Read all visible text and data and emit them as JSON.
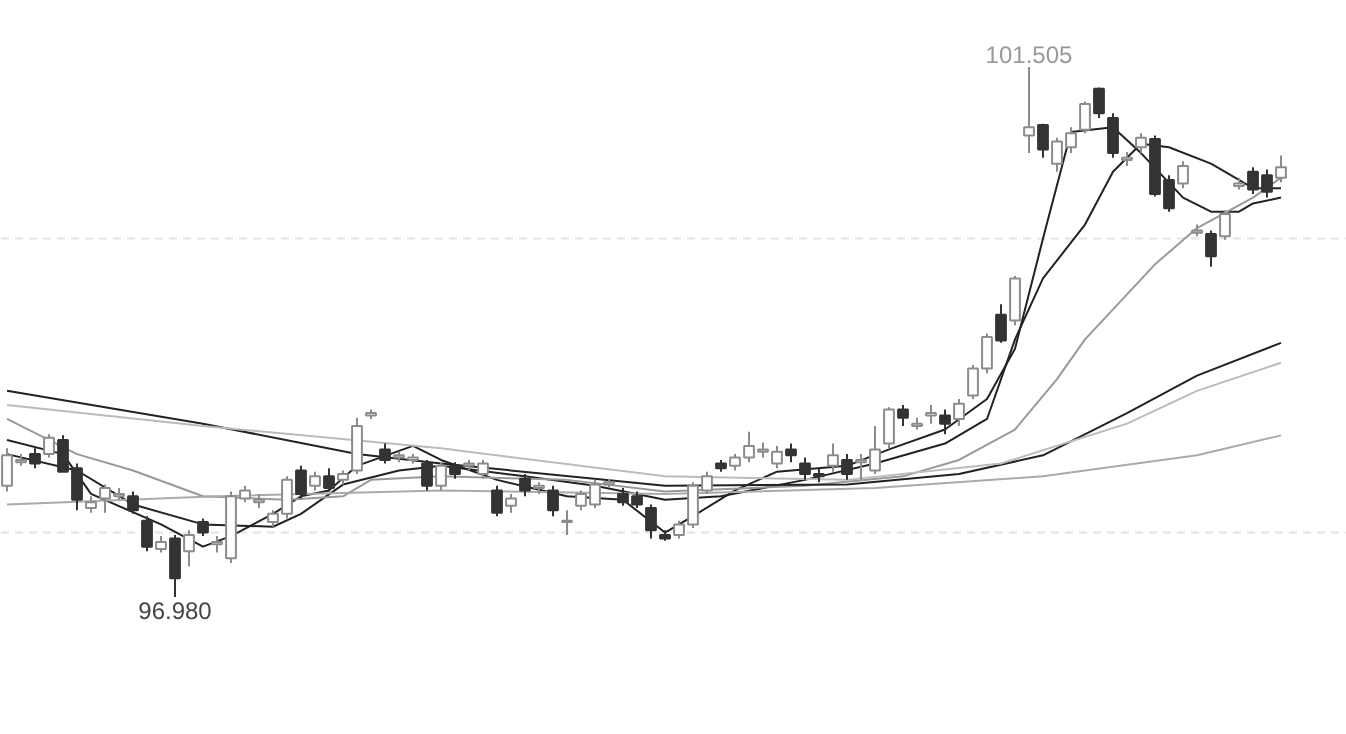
{
  "chart_data": {
    "type": "candlestick",
    "categories": [
      null,
      null,
      null,
      null,
      null,
      null,
      null,
      null,
      null,
      null,
      null,
      null,
      null,
      null,
      null,
      null,
      null,
      null,
      null,
      null,
      null,
      null,
      null,
      null,
      null,
      null,
      null,
      null,
      null,
      null,
      null,
      null,
      null,
      null,
      null,
      null,
      null,
      null,
      null,
      null,
      null,
      null,
      null,
      null,
      null,
      null,
      null,
      null,
      null,
      null,
      null,
      null,
      null,
      null,
      null,
      null,
      null,
      null,
      null,
      null,
      null,
      null,
      null,
      null,
      null,
      null,
      null,
      null,
      null,
      null,
      null,
      null,
      null,
      null,
      null,
      null,
      null,
      null,
      null,
      null,
      null,
      null,
      null,
      null,
      null,
      null,
      null,
      null,
      null,
      null,
      null,
      null
    ],
    "ohlc": [
      [
        97.93,
        98.25,
        97.88,
        98.19
      ],
      [
        98.13,
        98.2,
        98.1,
        98.15
      ],
      [
        98.2,
        98.25,
        98.08,
        98.12
      ],
      [
        98.2,
        98.37,
        98.17,
        98.34
      ],
      [
        98.32,
        98.36,
        98.05,
        98.05
      ],
      [
        98.08,
        98.12,
        97.72,
        97.81
      ],
      [
        97.74,
        97.84,
        97.7,
        97.79
      ],
      [
        97.82,
        97.94,
        97.7,
        97.91
      ],
      [
        97.84,
        97.91,
        97.81,
        97.86
      ],
      [
        97.84,
        97.88,
        97.69,
        97.72
      ],
      [
        97.63,
        97.67,
        97.37,
        97.41
      ],
      [
        97.39,
        97.5,
        97.36,
        97.45
      ],
      [
        97.48,
        97.51,
        96.98,
        97.14
      ],
      [
        97.37,
        97.55,
        97.24,
        97.51
      ],
      [
        97.62,
        97.65,
        97.5,
        97.53
      ],
      [
        97.43,
        97.5,
        97.36,
        97.45
      ],
      [
        97.31,
        97.88,
        97.27,
        97.84
      ],
      [
        97.82,
        97.93,
        97.79,
        97.89
      ],
      [
        97.79,
        97.86,
        97.74,
        97.81
      ],
      [
        97.62,
        97.72,
        97.58,
        97.69
      ],
      [
        97.69,
        98.01,
        97.65,
        97.98
      ],
      [
        98.06,
        98.1,
        97.82,
        97.86
      ],
      [
        97.93,
        98.05,
        97.89,
        98.01
      ],
      [
        98.01,
        98.08,
        97.88,
        97.91
      ],
      [
        97.98,
        98.06,
        97.94,
        98.03
      ],
      [
        98.06,
        98.51,
        98.03,
        98.44
      ],
      [
        98.53,
        98.58,
        98.5,
        98.55
      ],
      [
        98.24,
        98.29,
        98.12,
        98.15
      ],
      [
        98.17,
        98.22,
        98.13,
        98.19
      ],
      [
        98.15,
        98.2,
        98.12,
        98.17
      ],
      [
        98.12,
        98.15,
        97.89,
        97.93
      ],
      [
        97.93,
        98.13,
        97.89,
        98.1
      ],
      [
        98.1,
        98.13,
        97.99,
        98.03
      ],
      [
        98.1,
        98.15,
        98.06,
        98.12
      ],
      [
        98.03,
        98.15,
        97.99,
        98.12
      ],
      [
        97.89,
        97.93,
        97.67,
        97.7
      ],
      [
        97.76,
        97.86,
        97.7,
        97.82
      ],
      [
        97.99,
        98.03,
        97.84,
        97.89
      ],
      [
        97.91,
        97.96,
        97.86,
        97.93
      ],
      [
        97.89,
        97.93,
        97.67,
        97.72
      ],
      [
        97.62,
        97.72,
        97.51,
        97.63
      ],
      [
        97.76,
        97.89,
        97.72,
        97.86
      ],
      [
        97.77,
        97.98,
        97.74,
        97.94
      ],
      [
        97.94,
        97.99,
        97.91,
        97.96
      ],
      [
        97.86,
        97.91,
        97.76,
        97.79
      ],
      [
        97.84,
        97.88,
        97.74,
        97.77
      ],
      [
        97.74,
        97.77,
        97.48,
        97.55
      ],
      [
        97.51,
        97.55,
        97.46,
        97.48
      ],
      [
        97.51,
        97.63,
        97.48,
        97.6
      ],
      [
        97.6,
        97.96,
        97.57,
        97.93
      ],
      [
        97.89,
        98.05,
        97.86,
        98.01
      ],
      [
        98.12,
        98.15,
        98.05,
        98.08
      ],
      [
        98.1,
        98.2,
        98.06,
        98.17
      ],
      [
        98.17,
        98.39,
        98.13,
        98.27
      ],
      [
        98.22,
        98.3,
        98.17,
        98.24
      ],
      [
        98.12,
        98.27,
        98.08,
        98.22
      ],
      [
        98.24,
        98.29,
        98.13,
        98.19
      ],
      [
        98.12,
        98.17,
        97.98,
        98.03
      ],
      [
        98.03,
        98.08,
        97.96,
        98.01
      ],
      [
        98.1,
        98.29,
        98.05,
        98.19
      ],
      [
        98.15,
        98.2,
        97.98,
        98.03
      ],
      [
        98.13,
        98.2,
        97.98,
        98.15
      ],
      [
        98.06,
        98.44,
        98.03,
        98.24
      ],
      [
        98.29,
        98.6,
        98.25,
        98.58
      ],
      [
        98.58,
        98.62,
        98.44,
        98.51
      ],
      [
        98.44,
        98.51,
        98.41,
        98.46
      ],
      [
        98.53,
        98.62,
        98.46,
        98.55
      ],
      [
        98.53,
        98.58,
        98.37,
        98.46
      ],
      [
        98.5,
        98.67,
        98.44,
        98.63
      ],
      [
        98.7,
        98.96,
        98.67,
        98.93
      ],
      [
        98.93,
        99.23,
        98.89,
        99.2
      ],
      [
        99.39,
        99.48,
        99.15,
        99.17
      ],
      [
        99.34,
        99.72,
        99.3,
        99.7
      ],
      [
        100.92,
        101.505,
        100.77,
        100.99
      ],
      [
        101.01,
        101.02,
        100.73,
        100.8
      ],
      [
        100.68,
        100.9,
        100.61,
        100.87
      ],
      [
        100.82,
        100.99,
        100.77,
        100.94
      ],
      [
        100.97,
        101.21,
        100.94,
        101.19
      ],
      [
        101.32,
        101.33,
        101.07,
        101.11
      ],
      [
        101.07,
        101.11,
        100.73,
        100.77
      ],
      [
        100.71,
        100.78,
        100.66,
        100.73
      ],
      [
        100.82,
        100.94,
        100.77,
        100.9
      ],
      [
        100.89,
        100.92,
        100.4,
        100.42
      ],
      [
        100.54,
        100.58,
        100.27,
        100.3
      ],
      [
        100.51,
        100.7,
        100.47,
        100.66
      ],
      [
        100.09,
        100.16,
        100.06,
        100.11
      ],
      [
        100.08,
        100.11,
        99.8,
        99.89
      ],
      [
        100.06,
        100.28,
        100.03,
        100.25
      ],
      [
        100.49,
        100.56,
        100.46,
        100.51
      ],
      [
        100.61,
        100.65,
        100.42,
        100.46
      ],
      [
        100.58,
        100.63,
        100.39,
        100.44
      ],
      [
        100.56,
        100.75,
        100.52,
        100.65
      ]
    ],
    "series": [
      {
        "type": "line",
        "color": "#222222",
        "values": [
          98.32,
          null,
          null,
          null,
          98.2,
          null,
          97.86,
          null,
          null,
          null,
          null,
          97.6,
          null,
          null,
          97.41,
          null,
          97.5,
          null,
          null,
          97.69,
          null,
          97.84,
          null,
          97.89,
          null,
          98.1,
          null,
          null,
          null,
          98.27,
          null,
          98.15,
          null,
          null,
          null,
          97.98,
          null,
          null,
          null,
          null,
          97.84,
          null,
          null,
          null,
          97.81,
          null,
          null,
          97.53,
          null,
          97.67,
          null,
          null,
          97.89,
          null,
          null,
          98.05,
          null,
          null,
          null,
          null,
          98.1,
          null,
          null,
          98.24,
          null,
          null,
          null,
          98.41,
          null,
          null,
          98.67,
          null,
          99.1,
          null,
          100.04,
          null,
          100.95,
          null,
          null,
          100.99,
          null,
          100.77,
          null,
          null,
          100.39,
          null,
          100.27,
          null,
          100.27,
          100.34,
          null,
          100.39
        ]
      },
      {
        "type": "line",
        "color": "#222222",
        "values": [
          98.2,
          null,
          null,
          null,
          null,
          98.06,
          null,
          null,
          null,
          97.77,
          null,
          null,
          null,
          null,
          97.6,
          null,
          null,
          null,
          null,
          97.58,
          null,
          97.69,
          null,
          null,
          97.94,
          null,
          null,
          null,
          98.06,
          null,
          null,
          98.1,
          null,
          null,
          null,
          null,
          null,
          98.01,
          null,
          null,
          null,
          null,
          97.93,
          null,
          null,
          null,
          null,
          97.81,
          null,
          null,
          null,
          97.84,
          null,
          null,
          null,
          null,
          null,
          97.98,
          null,
          null,
          null,
          null,
          98.12,
          null,
          null,
          null,
          null,
          98.29,
          null,
          null,
          98.5,
          null,
          99.18,
          null,
          99.7,
          null,
          null,
          100.16,
          null,
          100.61,
          null,
          100.85,
          null,
          100.82,
          null,
          null,
          100.68,
          null,
          null,
          100.47,
          null,
          100.47
        ]
      },
      {
        "type": "line",
        "color": "#999999",
        "values": [
          98.5,
          null,
          null,
          null,
          null,
          98.2,
          null,
          null,
          null,
          98.06,
          null,
          null,
          null,
          null,
          97.84,
          null,
          null,
          null,
          null,
          null,
          97.81,
          null,
          null,
          null,
          97.84,
          null,
          97.98,
          null,
          null,
          null,
          null,
          98.01,
          null,
          null,
          null,
          null,
          null,
          null,
          null,
          null,
          97.98,
          null,
          null,
          null,
          null,
          null,
          null,
          97.88,
          null,
          null,
          null,
          null,
          null,
          null,
          null,
          null,
          null,
          97.93,
          null,
          null,
          null,
          null,
          null,
          null,
          98.01,
          null,
          null,
          null,
          98.15,
          null,
          null,
          null,
          98.41,
          null,
          null,
          98.84,
          null,
          99.18,
          null,
          null,
          null,
          null,
          99.82,
          null,
          null,
          100.13,
          null,
          null,
          null,
          100.39,
          null,
          100.56
        ]
      },
      {
        "type": "line",
        "color": "#222222",
        "values": [
          98.74,
          null,
          null,
          null,
          null,
          null,
          null,
          null,
          null,
          null,
          null,
          null,
          null,
          null,
          98.46,
          null,
          null,
          null,
          null,
          null,
          null,
          null,
          null,
          null,
          null,
          98.2,
          null,
          null,
          null,
          null,
          null,
          98.12,
          null,
          null,
          null,
          null,
          null,
          null,
          null,
          null,
          null,
          null,
          null,
          null,
          null,
          null,
          null,
          97.93,
          null,
          null,
          null,
          null,
          null,
          null,
          null,
          null,
          null,
          null,
          null,
          null,
          97.94,
          null,
          null,
          null,
          null,
          null,
          null,
          null,
          98.03,
          null,
          null,
          null,
          null,
          null,
          98.19,
          null,
          null,
          null,
          null,
          null,
          98.55,
          null,
          null,
          null,
          null,
          98.87,
          null,
          null,
          null,
          null,
          null,
          99.15
        ]
      },
      {
        "type": "line",
        "color": "#bbbbbb",
        "values": [
          98.62,
          null,
          null,
          null,
          null,
          null,
          null,
          null,
          null,
          null,
          null,
          null,
          null,
          null,
          98.44,
          null,
          null,
          null,
          null,
          null,
          null,
          null,
          null,
          null,
          null,
          null,
          null,
          null,
          null,
          null,
          null,
          98.25,
          null,
          null,
          null,
          null,
          null,
          null,
          null,
          null,
          null,
          null,
          null,
          null,
          null,
          null,
          null,
          98.01,
          null,
          null,
          null,
          null,
          null,
          null,
          null,
          null,
          null,
          null,
          null,
          null,
          97.98,
          null,
          null,
          null,
          null,
          null,
          null,
          null,
          null,
          null,
          null,
          98.12,
          null,
          null,
          null,
          null,
          null,
          null,
          null,
          null,
          98.46,
          null,
          null,
          null,
          null,
          98.74,
          null,
          null,
          null,
          null,
          null,
          98.98
        ]
      },
      {
        "type": "line",
        "color": "#aaaaaa",
        "values": [
          97.77,
          null,
          null,
          null,
          null,
          null,
          null,
          null,
          null,
          null,
          null,
          null,
          null,
          null,
          null,
          97.84,
          null,
          null,
          null,
          null,
          null,
          null,
          null,
          null,
          null,
          null,
          null,
          null,
          null,
          null,
          null,
          97.89,
          null,
          null,
          null,
          null,
          null,
          null,
          null,
          null,
          null,
          null,
          null,
          null,
          null,
          null,
          null,
          97.86,
          null,
          null,
          null,
          null,
          null,
          null,
          null,
          null,
          null,
          null,
          null,
          null,
          null,
          null,
          97.91,
          null,
          null,
          null,
          null,
          null,
          null,
          null,
          null,
          null,
          null,
          null,
          98.01,
          null,
          null,
          null,
          null,
          null,
          null,
          null,
          null,
          null,
          null,
          98.19,
          null,
          null,
          null,
          null,
          null,
          98.36
        ]
      }
    ],
    "ref_lines": [
      {
        "axis": "y",
        "value": 100.04,
        "color": "#e4e4e4",
        "line_style": "dashed"
      },
      {
        "axis": "y",
        "value": 97.53,
        "color": "#e4e4e4",
        "line_style": "dashed"
      }
    ],
    "annotations": [
      {
        "text": "101.505",
        "y": 101.505
      },
      {
        "text": "96.980",
        "y": 96.98
      }
    ]
  }
}
